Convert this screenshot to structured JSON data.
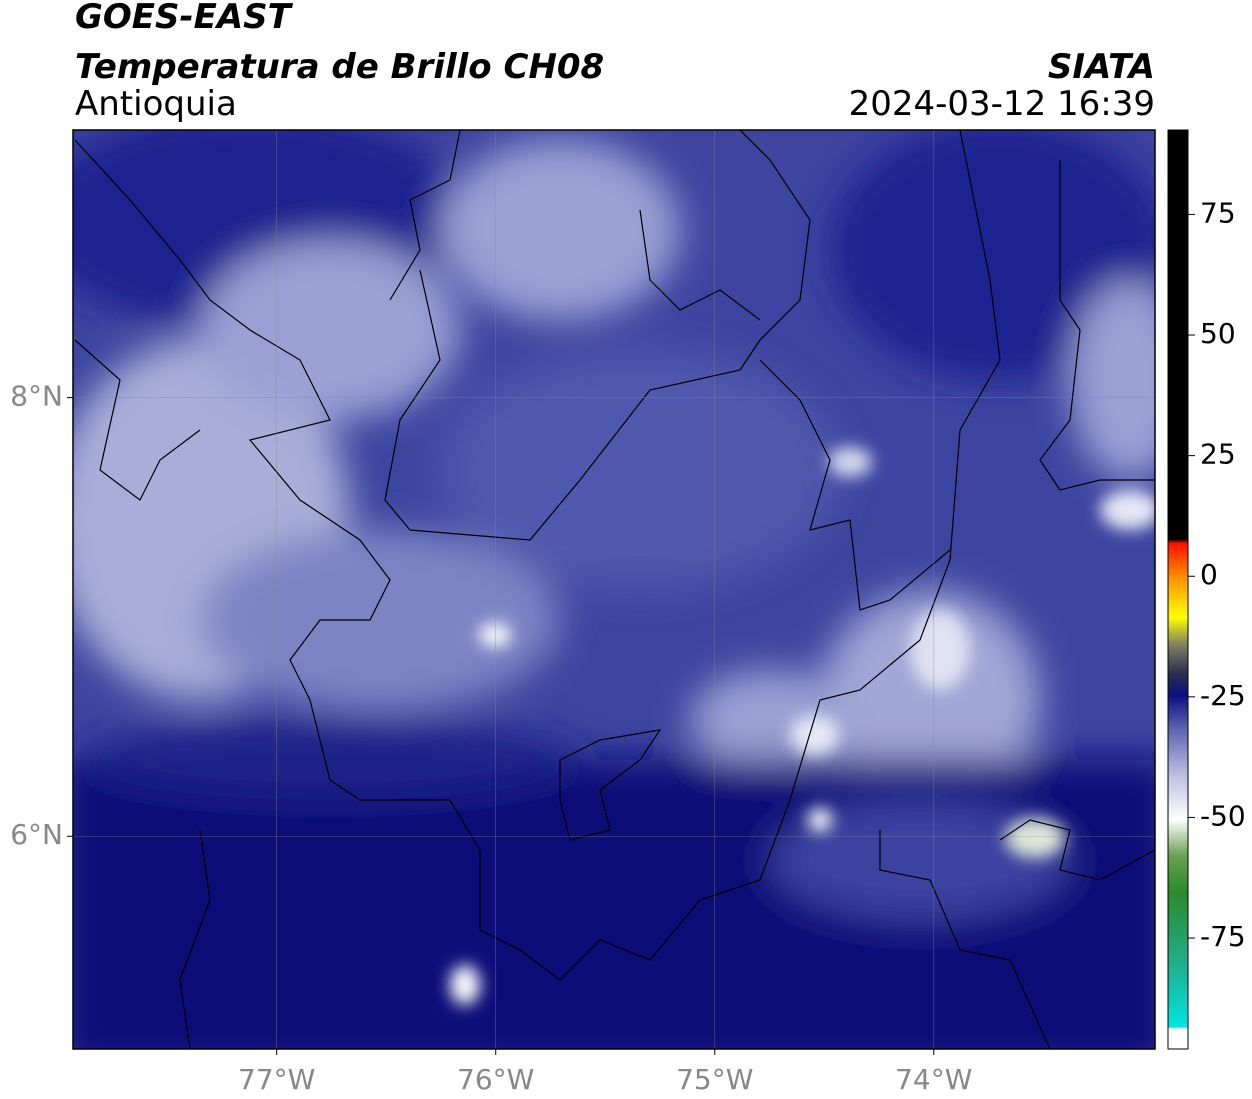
{
  "header": {
    "title": "GOES-EAST",
    "subtitle": "Temperatura de Brillo CH08",
    "region": "Antioquia",
    "source": "SIATA",
    "timestamp": "2024-03-12 16:39"
  },
  "map": {
    "xlim": [
      -77.93,
      -72.99
    ],
    "ylim": [
      5.03,
      9.22
    ],
    "xticks": [
      {
        "value": -77,
        "label": "77°W"
      },
      {
        "value": -76,
        "label": "76°W"
      },
      {
        "value": -75,
        "label": "75°W"
      },
      {
        "value": -74,
        "label": "74°W"
      }
    ],
    "yticks": [
      {
        "value": 8,
        "label": "8°N"
      },
      {
        "value": 6,
        "label": "6°N"
      }
    ],
    "grid": true
  },
  "colorbar": {
    "lim": [
      -98,
      92.5
    ],
    "ticks": [
      75,
      50,
      25,
      0,
      -25,
      -50,
      -75
    ]
  }
}
